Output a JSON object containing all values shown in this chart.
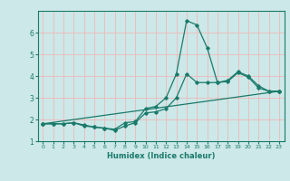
{
  "title": "",
  "xlabel": "Humidex (Indice chaleur)",
  "ylabel": "",
  "bg_color": "#cce8e8",
  "grid_color": "#f0b8b8",
  "line_color": "#1a7a6a",
  "xlim": [
    -0.5,
    23.5
  ],
  "ylim": [
    1.0,
    7.0
  ],
  "yticks": [
    1,
    2,
    3,
    4,
    5,
    6
  ],
  "xticks": [
    0,
    1,
    2,
    3,
    4,
    5,
    6,
    7,
    8,
    9,
    10,
    11,
    12,
    13,
    14,
    15,
    16,
    17,
    18,
    19,
    20,
    21,
    22,
    23
  ],
  "lines": [
    {
      "x": [
        0,
        1,
        2,
        3,
        4,
        5,
        6,
        7,
        8,
        9,
        10,
        11,
        12,
        13,
        14,
        15,
        16,
        17,
        18,
        19,
        20,
        21,
        22,
        23
      ],
      "y": [
        1.8,
        1.8,
        1.8,
        1.85,
        1.7,
        1.65,
        1.6,
        1.55,
        1.85,
        1.9,
        2.5,
        2.6,
        3.0,
        4.1,
        6.55,
        6.35,
        5.3,
        3.7,
        3.8,
        4.2,
        4.0,
        3.55,
        3.3,
        3.3
      ]
    },
    {
      "x": [
        0,
        1,
        2,
        3,
        4,
        5,
        6,
        7,
        8,
        9,
        10,
        11,
        12,
        13,
        14,
        15,
        16,
        17,
        18,
        19,
        20,
        21,
        22,
        23
      ],
      "y": [
        1.8,
        1.8,
        1.8,
        1.85,
        1.75,
        1.65,
        1.6,
        1.5,
        1.7,
        1.85,
        2.3,
        2.35,
        2.5,
        3.0,
        4.1,
        3.7,
        3.7,
        3.7,
        3.75,
        4.15,
        3.95,
        3.45,
        3.3,
        3.3
      ]
    },
    {
      "x": [
        0,
        23
      ],
      "y": [
        1.8,
        3.3
      ]
    }
  ]
}
